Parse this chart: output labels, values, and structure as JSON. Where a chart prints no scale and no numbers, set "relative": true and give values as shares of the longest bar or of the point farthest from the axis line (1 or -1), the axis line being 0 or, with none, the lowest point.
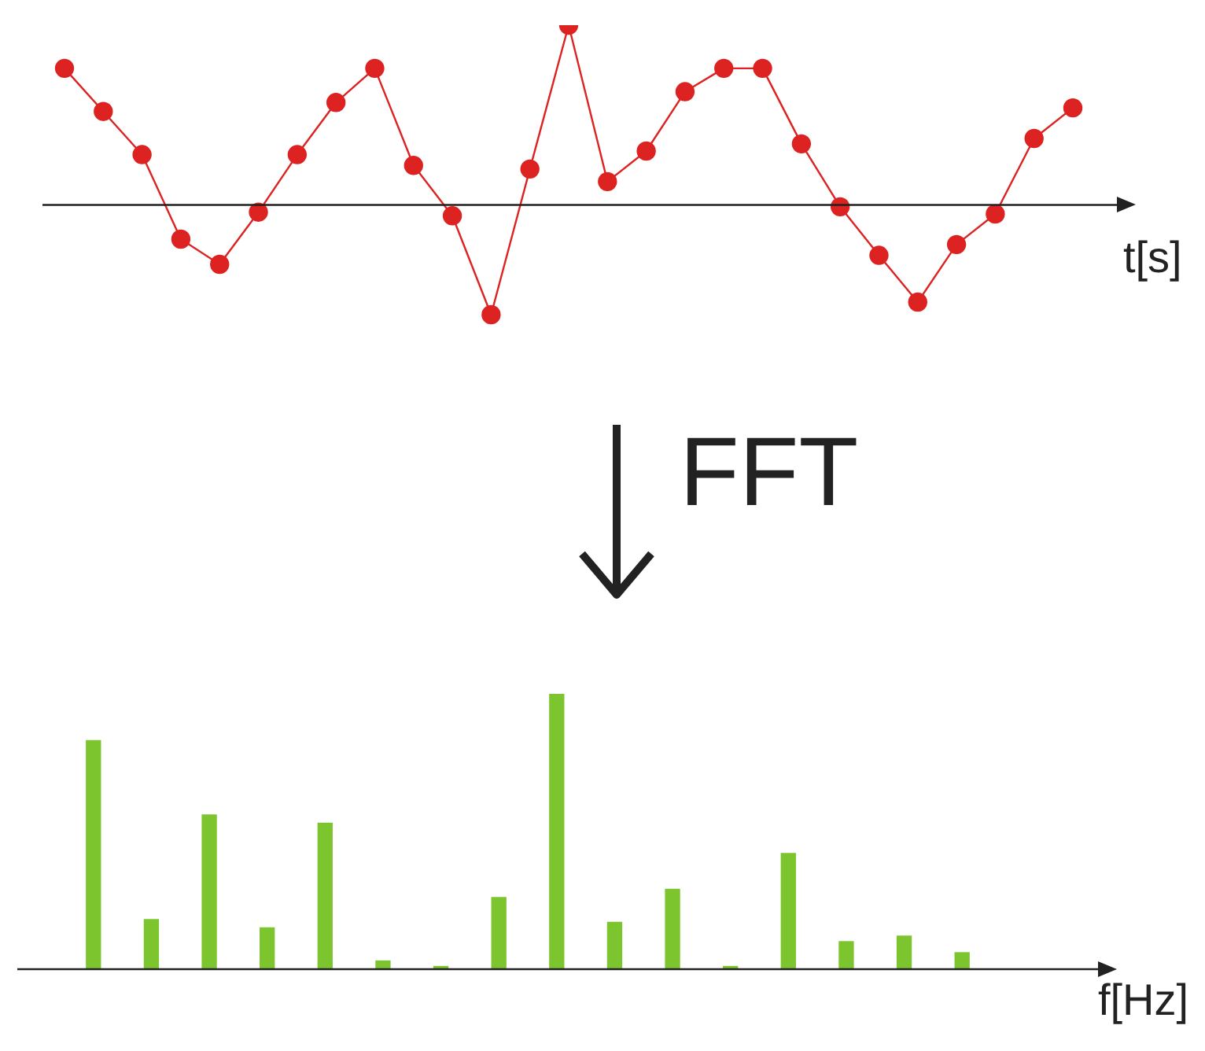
{
  "chart_data": [
    {
      "type": "line",
      "relative": true,
      "marker": "circle",
      "xlabel": "t[s]",
      "categories": [
        null,
        null,
        null,
        null,
        null,
        null,
        null,
        null,
        null,
        null,
        null,
        null,
        null,
        null,
        null,
        null,
        null,
        null,
        null,
        null,
        null,
        null,
        null,
        null,
        null,
        null,
        null
      ],
      "series": [
        {
          "color": "#dd2222",
          "values": [
            0.76,
            0.52,
            0.28,
            -0.19,
            -0.33,
            -0.04,
            0.28,
            0.57,
            0.76,
            0.22,
            -0.06,
            -0.61,
            0.2,
            1,
            0.13,
            0.3,
            0.63,
            0.76,
            0.76,
            0.34,
            -0.01,
            -0.28,
            -0.54,
            -0.22,
            -0.05,
            0.37,
            0.54
          ]
        }
      ]
    },
    {
      "type": "bar",
      "relative": true,
      "xlabel": "f[Hz]",
      "annotations": [
        "FFT"
      ],
      "categories": [
        null,
        null,
        null,
        null,
        null,
        null,
        null,
        null,
        null,
        null,
        null,
        null,
        null,
        null,
        null,
        null
      ],
      "series": [
        {
          "color": "#7dc52e",
          "values": [
            0.83,
            0.18,
            0.56,
            0.15,
            0.53,
            0.03,
            0.01,
            0.26,
            1,
            0.17,
            0.29,
            0.01,
            0.42,
            0.1,
            0.12,
            0.06
          ]
        }
      ]
    }
  ]
}
